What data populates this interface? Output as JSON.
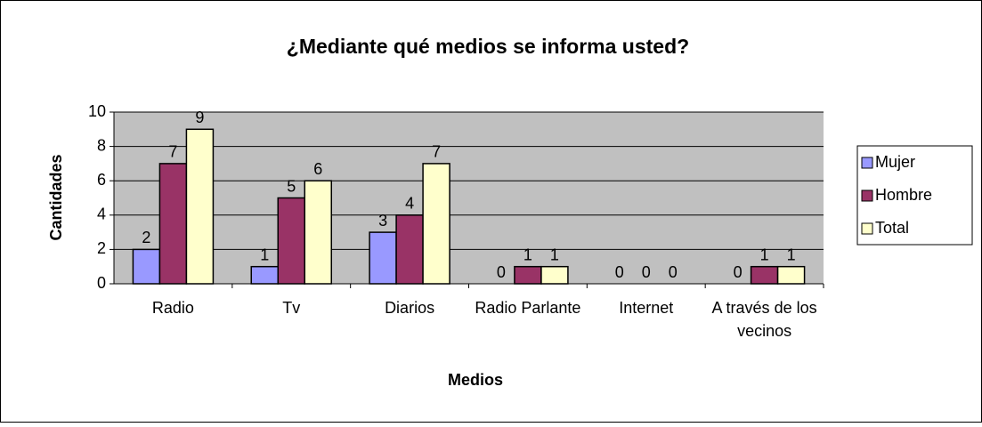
{
  "chart_data": {
    "type": "bar",
    "title": "¿Mediante qué medios se informa usted?",
    "x_label": "Medios",
    "y_label": "Cantidades",
    "categories": [
      "Radio",
      "Tv",
      "Diarios",
      "Radio Parlante",
      "Internet",
      "A través de los vecinos"
    ],
    "series": [
      {
        "name": "Mujer",
        "color": "#9999ff",
        "values": [
          2,
          1,
          3,
          0,
          0,
          0
        ]
      },
      {
        "name": "Hombre",
        "color": "#993366",
        "values": [
          7,
          5,
          4,
          1,
          0,
          1
        ]
      },
      {
        "name": "Total",
        "color": "#ffffcc",
        "values": [
          9,
          6,
          7,
          1,
          0,
          1
        ]
      }
    ],
    "ylim": [
      0,
      10
    ],
    "yticks": [
      0,
      2,
      4,
      6,
      8,
      10
    ],
    "grid": true,
    "legend": "right"
  }
}
